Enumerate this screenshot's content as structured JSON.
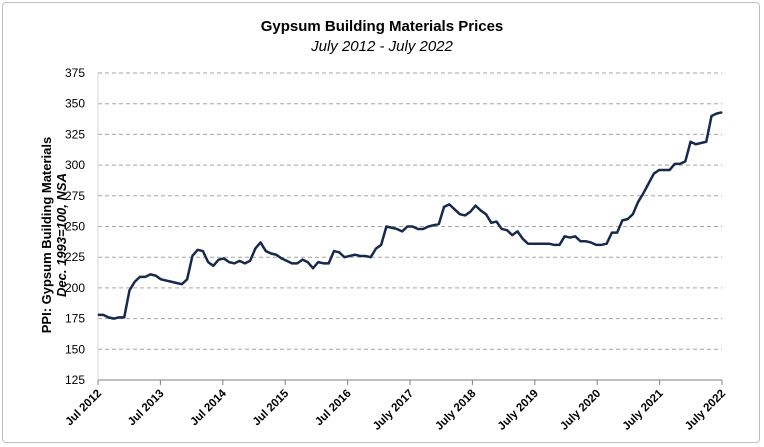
{
  "chart_data": {
    "type": "line",
    "title": "Gypsum Building Materials Prices",
    "subtitle": "July 2012 - July 2022",
    "ylabel_line1": "PPI: Gypsum Building Materials",
    "ylabel_line2": "Dec. 1993=100, NSA",
    "xlabel": "",
    "ylim": [
      125,
      375
    ],
    "yticks": [
      125,
      150,
      175,
      200,
      225,
      250,
      275,
      300,
      325,
      350,
      375
    ],
    "xtick_labels": [
      "Jul 2012",
      "Jul 2013",
      "Jul 2014",
      "Jul 2015",
      "Jul 2016",
      "July 2017",
      "July 2018",
      "July 2019",
      "July 2020",
      "July 2021",
      "July 2022"
    ],
    "grid": "horizontal dashed",
    "line_color": "#17294d",
    "series": [
      {
        "values": [
          178,
          178,
          176,
          175,
          176,
          176,
          198,
          205,
          209,
          209,
          211,
          210,
          207,
          206,
          205,
          204,
          203,
          207,
          226,
          231,
          230,
          221,
          218,
          223,
          224,
          221,
          220,
          222,
          220,
          222,
          232,
          237,
          230,
          228,
          227,
          224,
          222,
          220,
          220,
          223,
          221,
          216,
          221,
          220,
          220,
          230,
          229,
          225,
          226,
          227,
          226,
          226,
          225,
          232,
          235,
          250,
          249,
          248,
          246,
          250,
          250,
          248,
          248,
          250,
          251,
          252,
          266,
          268,
          264,
          260,
          259,
          262,
          267,
          263,
          260,
          253,
          254,
          248,
          247,
          243,
          246,
          240,
          236,
          236,
          236,
          236,
          236,
          235,
          235,
          242,
          241,
          242,
          238,
          238,
          237,
          235,
          235,
          236,
          245,
          245,
          255,
          256,
          260,
          270,
          277,
          285,
          293,
          296,
          296,
          296,
          301,
          301,
          303,
          319,
          317,
          318,
          319,
          340,
          342,
          343
        ]
      }
    ]
  }
}
